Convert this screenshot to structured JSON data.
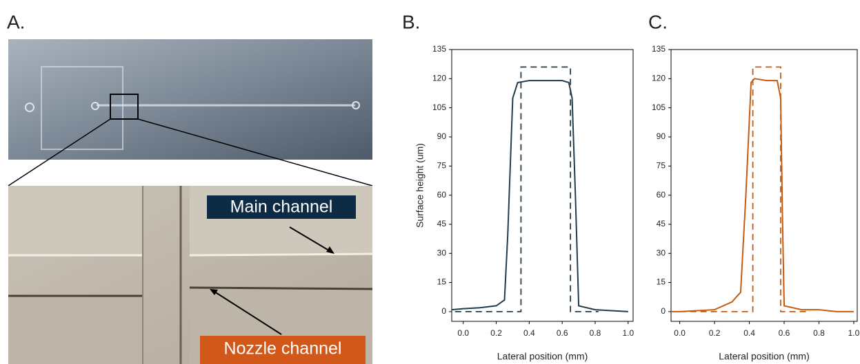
{
  "photo": {
    "panel_label": "A.",
    "annotations": [
      "Main channel",
      "Nozzle channel"
    ]
  },
  "chart_data": [
    {
      "type": "line",
      "panel_label": "B.",
      "ylabel": "Surface height (um)",
      "xlabel": "Lateral position (mm)",
      "xlim": [
        -0.07,
        1.03
      ],
      "ylim": [
        -5,
        135
      ],
      "xticks": [
        {
          "value": 0,
          "label": "0.0"
        },
        0.2,
        0.4,
        0.6,
        0.8,
        {
          "value": 1,
          "label": "1.0"
        }
      ],
      "yticks": [
        0,
        15,
        30,
        45,
        60,
        75,
        90,
        105,
        120,
        135
      ],
      "series": [
        {
          "color": "#1f3b4d",
          "dash": false,
          "x": [
            -0.07,
            0.0,
            0.1,
            0.2,
            0.25,
            0.27,
            0.3,
            0.33,
            0.4,
            0.5,
            0.6,
            0.64,
            0.66,
            0.68,
            0.7,
            0.8,
            0.9,
            1.0
          ],
          "values": [
            1,
            1.5,
            2,
            3,
            6,
            40,
            110,
            118,
            119,
            119,
            119,
            118,
            110,
            60,
            3,
            1,
            0.5,
            0
          ]
        },
        {
          "color": "#1f3b4d",
          "dash": true,
          "x": [
            -0.05,
            0.35,
            0.35,
            0.65,
            0.65,
            0.82
          ],
          "values": [
            0,
            0,
            126,
            126,
            0,
            0
          ]
        }
      ]
    },
    {
      "type": "line",
      "panel_label": "C.",
      "xlabel": "Lateral position (mm)",
      "xlim": [
        -0.05,
        1.02
      ],
      "ylim": [
        -5,
        135
      ],
      "xticks": [
        {
          "value": 0,
          "label": "0.0"
        },
        0.2,
        0.4,
        0.6,
        0.8,
        {
          "value": 1,
          "label": "1.0"
        }
      ],
      "yticks": [
        0,
        15,
        30,
        45,
        60,
        75,
        90,
        105,
        120,
        135
      ],
      "series": [
        {
          "color": "#c55a11",
          "dash": false,
          "x": [
            -0.05,
            0.0,
            0.1,
            0.2,
            0.3,
            0.35,
            0.38,
            0.41,
            0.43,
            0.5,
            0.56,
            0.58,
            0.59,
            0.6,
            0.7,
            0.8,
            0.9,
            1.0
          ],
          "values": [
            0,
            0,
            0.5,
            1,
            5,
            10,
            60,
            118,
            120,
            119,
            119,
            110,
            50,
            3,
            1,
            1,
            0,
            0
          ]
        },
        {
          "color": "#c55a11",
          "dash": true,
          "x": [
            0.0,
            0.42,
            0.42,
            0.58,
            0.58,
            0.75
          ],
          "values": [
            0,
            0,
            126,
            126,
            0,
            0
          ]
        }
      ]
    }
  ]
}
